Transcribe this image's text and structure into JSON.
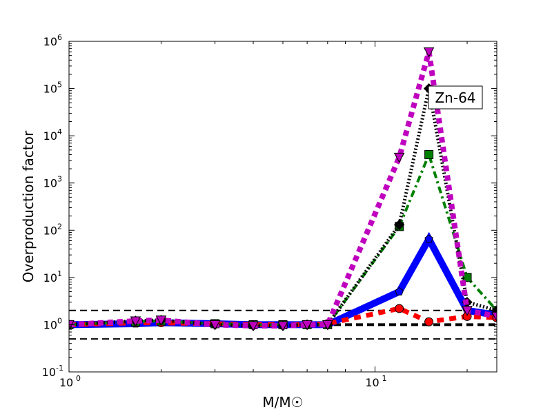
{
  "chart_data": {
    "type": "line",
    "title": "",
    "annotation": "Zn-64",
    "xlabel": "M/M☉",
    "ylabel": "Overproduction factor",
    "xscale": "log",
    "yscale": "log",
    "xlim": [
      1,
      25
    ],
    "ylim": [
      0.1,
      1000000
    ],
    "xticks": [
      {
        "v": 1,
        "b": "10",
        "e": "0"
      },
      {
        "v": 10,
        "b": "10",
        "e": "1"
      }
    ],
    "yticks": [
      {
        "v": 0.1,
        "b": "10",
        "e": "-1"
      },
      {
        "v": 1,
        "b": "10",
        "e": "0"
      },
      {
        "v": 10,
        "b": "10",
        "e": "1"
      },
      {
        "v": 100,
        "b": "10",
        "e": "2"
      },
      {
        "v": 1000,
        "b": "10",
        "e": "3"
      },
      {
        "v": 10000,
        "b": "10",
        "e": "4"
      },
      {
        "v": 100000,
        "b": "10",
        "e": "5"
      },
      {
        "v": 1000000,
        "b": "10",
        "e": "6"
      }
    ],
    "reference_lines": [
      2,
      1,
      0.5
    ],
    "x": [
      1,
      1.65,
      2,
      3,
      4,
      5,
      6,
      7,
      12,
      15,
      20,
      25
    ],
    "series": [
      {
        "name": "blue-solid-pentagon",
        "color": "#0000ff",
        "dash": "",
        "width": 10,
        "marker": "pentagon",
        "values": [
          1.0,
          1.05,
          1.1,
          1.05,
          1.0,
          1.0,
          1.0,
          1.0,
          5,
          65,
          2,
          1.6
        ]
      },
      {
        "name": "red-dashed-circle",
        "color": "#ff0000",
        "dash": "10,8",
        "width": 7,
        "marker": "circle",
        "values": [
          1.0,
          1.1,
          1.1,
          1.05,
          1.0,
          1.0,
          1.0,
          1.05,
          2.2,
          1.15,
          1.5,
          1.4
        ]
      },
      {
        "name": "green-dashdot-square",
        "color": "#008000",
        "dash": "10,5,3,5",
        "width": 4,
        "marker": "square",
        "values": [
          1.0,
          1.15,
          1.2,
          1.05,
          1.0,
          1.0,
          1.0,
          1.0,
          120,
          4000,
          10,
          2
        ]
      },
      {
        "name": "black-dotted-diamond",
        "color": "#000000",
        "dash": "2,3",
        "width": 5,
        "marker": "diamond",
        "values": [
          1.0,
          1.2,
          1.25,
          1.0,
          0.95,
          0.95,
          1.0,
          1.0,
          130,
          100000,
          3,
          2
        ]
      },
      {
        "name": "magenta-dotted-triangle",
        "color": "#bf00bf",
        "dash": "8,6",
        "width": 8,
        "marker": "triangle",
        "values": [
          1.0,
          1.2,
          1.25,
          1.0,
          0.95,
          0.95,
          1.0,
          1.0,
          3500,
          600000,
          2,
          1.5
        ]
      }
    ]
  }
}
